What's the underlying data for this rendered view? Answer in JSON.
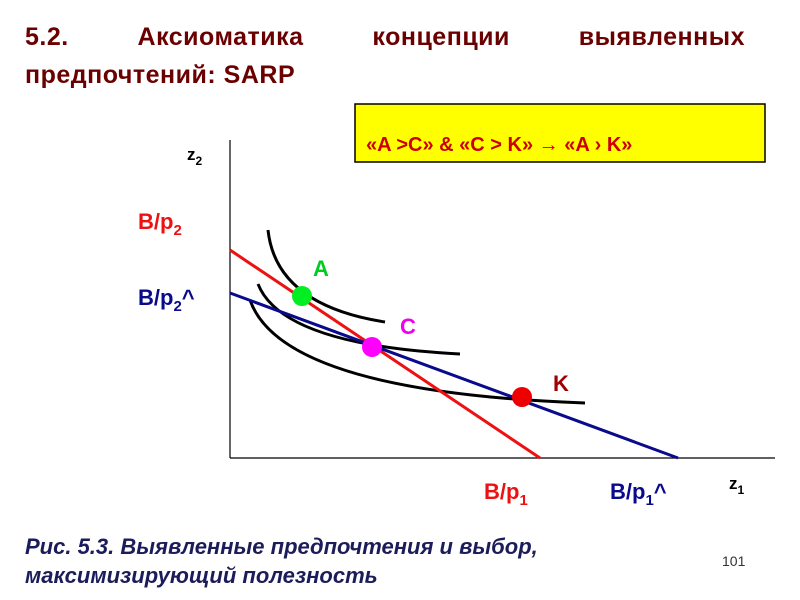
{
  "header": {
    "title": "5.2. Аксиоматика концепции выявленных предпочтений: SARP"
  },
  "box": {
    "text": "«A >C» & «C > K» →  «A › K»"
  },
  "axes": {
    "y": {
      "main": "z",
      "sub": "2"
    },
    "x": {
      "main": "z",
      "sub": "1"
    }
  },
  "labels": {
    "b_p2": {
      "main": "B/p",
      "sub": "2"
    },
    "b_p2_hat": {
      "main": "B/p",
      "sub": "2",
      "tail": "^"
    },
    "b_p1": {
      "main": "B/p",
      "sub": "1"
    },
    "b_p1_hat": {
      "main": "B/p",
      "sub": "1",
      "tail": "^"
    }
  },
  "points": {
    "a": "A",
    "c": "C",
    "k": "K"
  },
  "caption": "Рис. 5.3. Выявленные предпочтения и выбор, максимизирующий полезность",
  "page_number": "101"
}
